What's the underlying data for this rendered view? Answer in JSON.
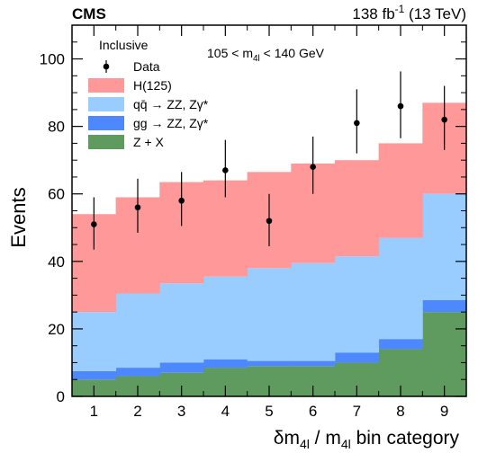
{
  "header": {
    "experiment": "CMS",
    "lumi_value": "138 fb",
    "lumi_exp": "-1",
    "lumi_energy": " (13 TeV)"
  },
  "chart_data": {
    "type": "bar",
    "stacked": true,
    "categories": [
      "1",
      "2",
      "3",
      "4",
      "5",
      "6",
      "7",
      "8",
      "9"
    ],
    "xlabel": {
      "main": "δm",
      "sub": "4l",
      "mid": " / m",
      "sub2": "4l",
      "tail": " bin category"
    },
    "ylabel": "Events",
    "ylim": [
      0,
      110
    ],
    "yticks": [
      0,
      20,
      40,
      60,
      80,
      100
    ],
    "grid": false,
    "legend_position": "top-left",
    "legend_header": "Inclusive",
    "annotation": {
      "pre": "105 < m",
      "sub": "4l",
      "post": " < 140 GeV"
    },
    "series": [
      {
        "name": "Z + X",
        "color": "#5f9a5e",
        "values": [
          5.0,
          6.0,
          7.0,
          8.5,
          9.0,
          9.0,
          10.0,
          14.0,
          25.0
        ]
      },
      {
        "name": "gg → ZZ, Zγ*",
        "color": "#4d88ff",
        "values": [
          2.5,
          2.5,
          3.0,
          2.5,
          1.5,
          1.5,
          3.0,
          3.0,
          3.5
        ]
      },
      {
        "name": "qq̄ → ZZ, Zγ*",
        "color": "#99ccff",
        "values": [
          17.5,
          22.0,
          23.5,
          24.5,
          27.5,
          29.0,
          28.5,
          30.0,
          31.5
        ]
      },
      {
        "name": "H(125)",
        "color": "#ff9999",
        "values": [
          29.0,
          28.5,
          30.0,
          28.5,
          28.5,
          29.5,
          28.5,
          28.0,
          27.0
        ]
      }
    ],
    "data_points": {
      "name": "Data",
      "values": [
        51,
        56,
        58,
        67,
        52,
        68,
        81,
        86,
        82
      ],
      "err_low": [
        7.5,
        7.5,
        7.5,
        8.0,
        7.5,
        8.0,
        9.0,
        9.5,
        9.0
      ],
      "err_high": [
        8.0,
        8.5,
        8.5,
        9.0,
        8.0,
        9.0,
        10.0,
        10.3,
        10.0
      ]
    }
  }
}
